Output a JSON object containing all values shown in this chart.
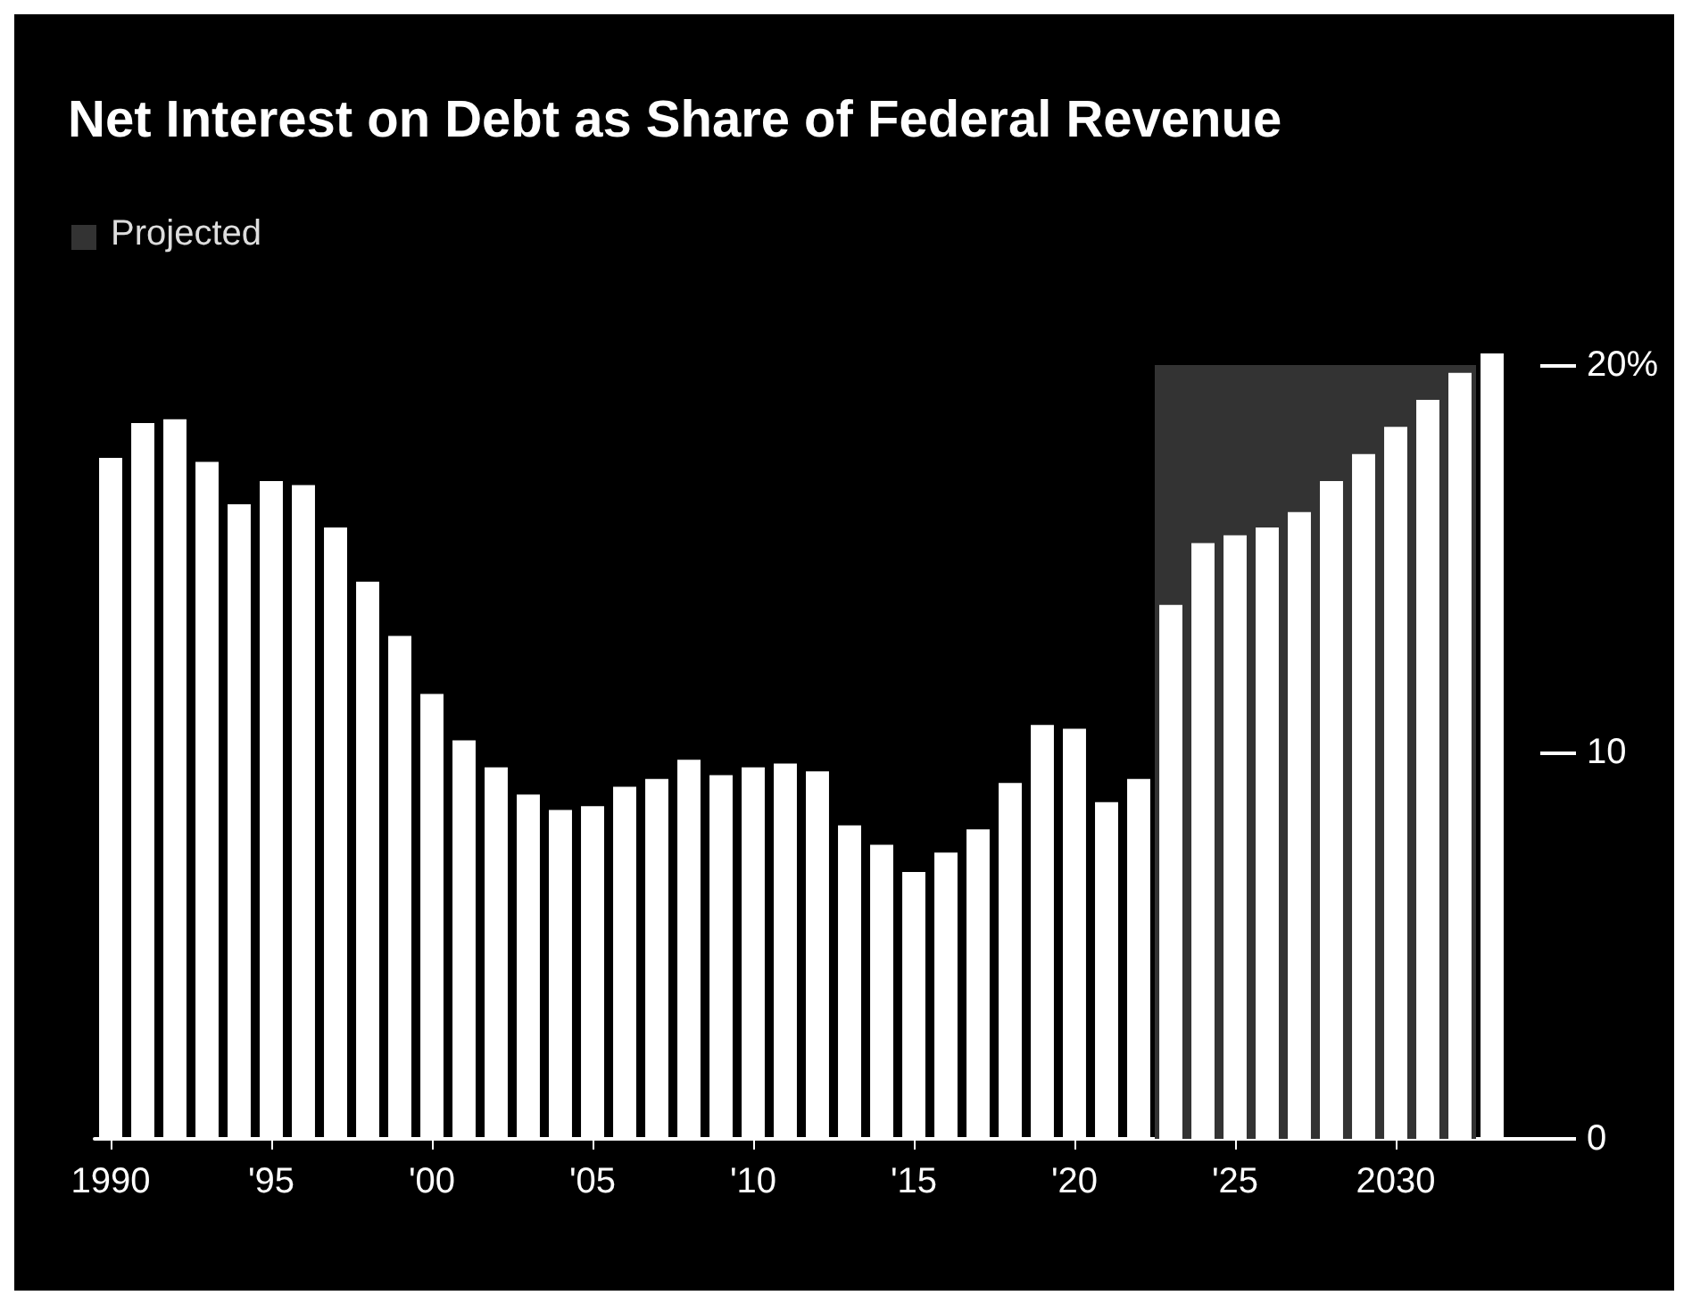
{
  "chart_data": {
    "type": "bar",
    "title": "Net Interest on Debt as Share of Federal Revenue",
    "x": [
      1990,
      1991,
      1992,
      1993,
      1994,
      1995,
      1996,
      1997,
      1998,
      1999,
      2000,
      2001,
      2002,
      2003,
      2004,
      2005,
      2006,
      2007,
      2008,
      2009,
      2010,
      2011,
      2012,
      2013,
      2014,
      2015,
      2016,
      2017,
      2018,
      2019,
      2020,
      2021,
      2022,
      2023,
      2024,
      2025,
      2026,
      2027,
      2028,
      2029,
      2030,
      2031,
      2032,
      2033
    ],
    "values": [
      17.6,
      18.5,
      18.6,
      17.5,
      16.4,
      17.0,
      16.9,
      15.8,
      14.4,
      13.0,
      11.5,
      10.3,
      9.6,
      8.9,
      8.5,
      8.6,
      9.1,
      9.3,
      9.8,
      9.4,
      9.6,
      9.7,
      9.5,
      8.1,
      7.6,
      6.9,
      7.4,
      8.0,
      9.2,
      10.7,
      10.6,
      8.7,
      9.3,
      13.8,
      15.4,
      15.6,
      15.8,
      16.2,
      17.0,
      17.7,
      18.4,
      19.1,
      19.8,
      20.3
    ],
    "color": "#ffffff",
    "xlim": [
      1989.5,
      2034.5
    ],
    "xticks": [
      {
        "value": 1990,
        "label": "1990"
      },
      {
        "value": 1995,
        "label": "'95"
      },
      {
        "value": 2000,
        "label": "'00"
      },
      {
        "value": 2005,
        "label": "'05"
      },
      {
        "value": 2010,
        "label": "'10"
      },
      {
        "value": 2015,
        "label": "'15"
      },
      {
        "value": 2020,
        "label": "'20"
      },
      {
        "value": 2025,
        "label": "'25"
      },
      {
        "value": 2030,
        "label": "2030"
      }
    ],
    "ylim": [
      0,
      20.3
    ],
    "yticks": [
      0,
      10,
      {
        "value": 20,
        "label": "20%"
      }
    ],
    "bands": [
      {
        "axis": "x",
        "from": 2022.5,
        "to": 2032.5,
        "label": "Projected",
        "color": "#333333"
      }
    ],
    "grid": false
  }
}
